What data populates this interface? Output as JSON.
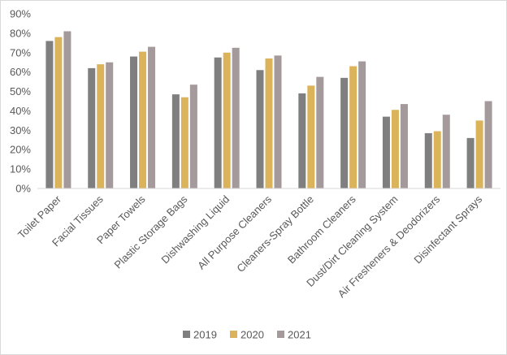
{
  "chart_data": {
    "type": "bar",
    "categories": [
      "Toilet Paper",
      "Facial Tissues",
      "Paper Towels",
      "Plastic Storage Bags",
      "Dishwashing Liquid",
      "All Purpose Cleaners",
      "Cleaners-Spray Bottle",
      "Bathroom Cleaners",
      "Dust/Dirt Cleaning System",
      "Air Fresheners & Deodorizers",
      "Disinfectant Sprays"
    ],
    "series": [
      {
        "name": "2019",
        "color": "#7f7f7f",
        "values": [
          76,
          62,
          68,
          48.5,
          67.5,
          61,
          49,
          57,
          37,
          28.5,
          26
        ]
      },
      {
        "name": "2020",
        "color": "#dbb35b",
        "values": [
          78,
          64,
          70.5,
          47,
          70,
          67,
          53,
          63,
          40.5,
          29.5,
          35
        ]
      },
      {
        "name": "2021",
        "color": "#a49a9b",
        "values": [
          81,
          65,
          73,
          53.5,
          72.5,
          68.5,
          57.5,
          65.5,
          43.5,
          38,
          45
        ]
      }
    ],
    "ylim": [
      0,
      90
    ],
    "yticks": [
      {
        "value": 0,
        "label": "0%"
      },
      {
        "value": 10,
        "label": "10%"
      },
      {
        "value": 20,
        "label": "20%"
      },
      {
        "value": 30,
        "label": "30%"
      },
      {
        "value": 40,
        "label": "40%"
      },
      {
        "value": 50,
        "label": "50%"
      },
      {
        "value": 60,
        "label": "60%"
      },
      {
        "value": 70,
        "label": "70%"
      },
      {
        "value": 80,
        "label": "80%"
      },
      {
        "value": 90,
        "label": "90%"
      }
    ],
    "grid": false,
    "legend": "bottom"
  }
}
